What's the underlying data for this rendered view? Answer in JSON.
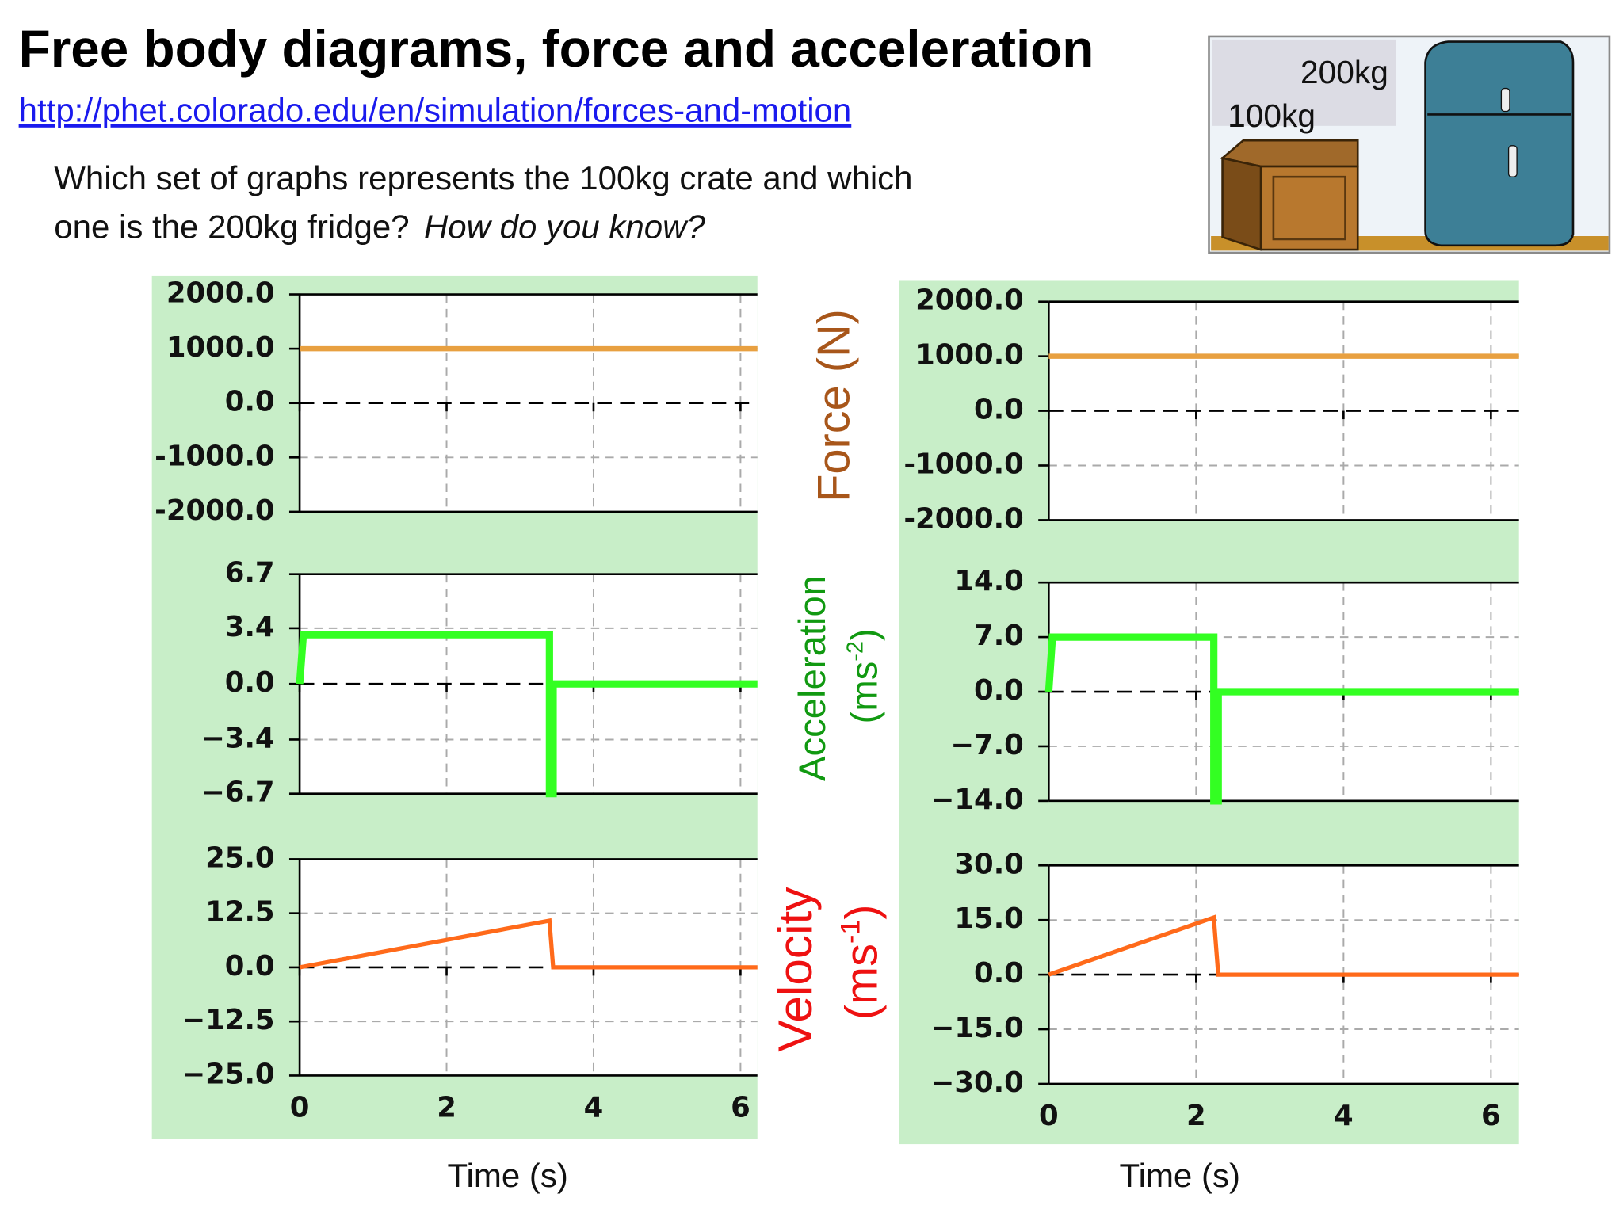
{
  "title": "Free body diagrams, force and acceleration",
  "link": "http://phet.colorado.edu/en/simulation/forces-and-motion",
  "question": {
    "line1": "Which set of graphs represents the 100kg crate and which",
    "line2": "one is the 200kg fridge?",
    "italic": "How do you know?"
  },
  "picture": {
    "label_fridge": "200kg",
    "label_crate": "100kg"
  },
  "axis_titles": {
    "force": "Force (N)",
    "acceleration": "Acceleration",
    "acc_open": "(ms",
    "acc_exp": "-2",
    "acc_close": ")",
    "velocity": "Velocity",
    "vel_open": "(ms",
    "vel_exp": "-1",
    "vel_close": ")"
  },
  "chart_data": [
    {
      "type": "line",
      "xlim": [
        0,
        6.23
      ],
      "xticks": [
        0,
        2,
        4,
        6
      ],
      "xtick_labels": false,
      "grid": true,
      "ylim": [
        -2000,
        2000
      ],
      "yticks": [
        {
          "value": -2000,
          "label": "-2000.0"
        },
        {
          "value": -1000,
          "label": "-1000.0"
        },
        {
          "value": 0,
          "label": "0.0"
        },
        {
          "value": 1000,
          "label": "1000.0"
        },
        {
          "value": 2000,
          "label": "2000.0"
        }
      ],
      "x": [
        0,
        6.23
      ],
      "series": [
        {
          "color": "#e8a040",
          "values": [
            1000,
            1000
          ]
        }
      ]
    },
    {
      "type": "line",
      "xlim": [
        0,
        6.23
      ],
      "xticks": [
        0,
        2,
        4,
        6
      ],
      "xtick_labels": false,
      "grid": true,
      "ylim": [
        -6.7,
        6.7
      ],
      "yticks": [
        {
          "value": -6.7,
          "label": "−6.7"
        },
        {
          "value": -3.4,
          "label": "−3.4"
        },
        {
          "value": 0,
          "label": "0.0"
        },
        3.4,
        6.7
      ],
      "x": [
        0,
        0.05,
        3.4,
        3.4,
        3.45,
        3.45,
        6.23
      ],
      "series": [
        {
          "color": "#33ff22",
          "values": [
            0,
            3.0,
            3.0,
            -6.7,
            -6.7,
            0,
            0
          ]
        }
      ]
    },
    {
      "type": "line",
      "xlim": [
        0,
        6.23
      ],
      "xticks": [
        0,
        2,
        4,
        6
      ],
      "xtick_labels": true,
      "grid": true,
      "ylim": [
        -25,
        25
      ],
      "yticks": [
        {
          "value": -25,
          "label": "−25.0"
        },
        {
          "value": -12.5,
          "label": "−12.5"
        },
        {
          "value": 0,
          "label": "0.0"
        },
        12.5,
        {
          "value": 25,
          "label": "25.0"
        }
      ],
      "x": [
        0,
        3.4,
        3.45,
        6.23
      ],
      "series": [
        {
          "color": "#ff6a1a",
          "values": [
            0,
            10.8,
            0,
            0
          ]
        }
      ],
      "xlabel": "Time (s)"
    },
    {
      "type": "line",
      "xlim": [
        0,
        6.38
      ],
      "xticks": [
        0,
        2,
        4,
        6
      ],
      "xtick_labels": false,
      "grid": true,
      "ylim": [
        -2000,
        2000
      ],
      "yticks": [
        {
          "value": -2000,
          "label": "-2000.0"
        },
        {
          "value": -1000,
          "label": "-1000.0"
        },
        {
          "value": 0,
          "label": "0.0"
        },
        {
          "value": 1000,
          "label": "1000.0"
        },
        {
          "value": 2000,
          "label": "2000.0"
        }
      ],
      "x": [
        0,
        6.38
      ],
      "series": [
        {
          "color": "#e8a040",
          "values": [
            1000,
            1000
          ]
        }
      ]
    },
    {
      "type": "line",
      "xlim": [
        0,
        6.38
      ],
      "xticks": [
        0,
        2,
        4,
        6
      ],
      "xtick_labels": false,
      "grid": true,
      "ylim": [
        -14,
        14
      ],
      "yticks": [
        {
          "value": -14,
          "label": "−14.0"
        },
        {
          "value": -7,
          "label": "−7.0"
        },
        {
          "value": 0,
          "label": "0.0"
        },
        {
          "value": 7,
          "label": "7.0"
        },
        {
          "value": 14,
          "label": "14.0"
        }
      ],
      "x": [
        0,
        0.05,
        2.24,
        2.24,
        2.3,
        2.3,
        6.38
      ],
      "series": [
        {
          "color": "#33ff22",
          "values": [
            0,
            7.0,
            7.0,
            -14,
            -14,
            0,
            0
          ]
        }
      ]
    },
    {
      "type": "line",
      "xlim": [
        0,
        6.38
      ],
      "xticks": [
        0,
        2,
        4,
        6
      ],
      "xtick_labels": true,
      "grid": true,
      "ylim": [
        -30,
        30
      ],
      "yticks": [
        {
          "value": -30,
          "label": "−30.0"
        },
        {
          "value": -15,
          "label": "−15.0"
        },
        {
          "value": 0,
          "label": "0.0"
        },
        {
          "value": 15,
          "label": "15.0"
        },
        {
          "value": 30,
          "label": "30.0"
        }
      ],
      "x": [
        0,
        2.24,
        2.3,
        6.38
      ],
      "series": [
        {
          "color": "#ff6a1a",
          "values": [
            0,
            15.7,
            0,
            0
          ]
        }
      ],
      "xlabel": "Time (s)"
    }
  ]
}
